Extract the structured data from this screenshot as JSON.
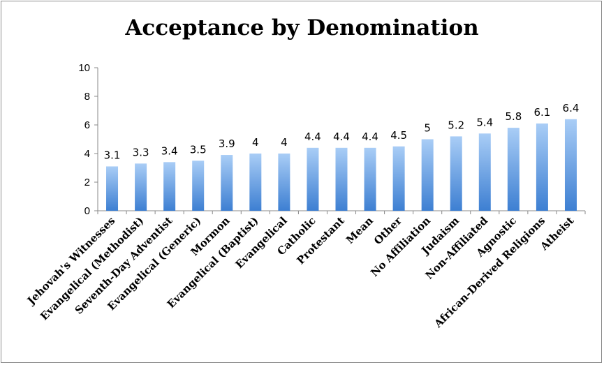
{
  "chart_data": {
    "type": "bar",
    "title": "Acceptance by Denomination",
    "xlabel": "",
    "ylabel": "",
    "ylim": [
      0,
      10
    ],
    "yticks": [
      0,
      2,
      4,
      6,
      8,
      10
    ],
    "grid": false,
    "legend": "none",
    "categories": [
      "Jehovah's Witnesses",
      "Evangelical (Methodist)",
      "Seventh-Day Adventist",
      "Evangelical (Generic)",
      "Mormon",
      "Evangelical (Baptist)",
      "Evangelical",
      "Catholic",
      "Protestant",
      "Mean",
      "Other",
      "No Affiliation",
      "Judaism",
      "Non-Affiliated",
      "Agnostic",
      "African-Derived Religions",
      "Atheist"
    ],
    "values": [
      3.1,
      3.3,
      3.4,
      3.5,
      3.9,
      4,
      4,
      4.4,
      4.4,
      4.4,
      4.5,
      5,
      5.2,
      5.4,
      5.8,
      6.1,
      6.4
    ],
    "colors": {
      "bar_top": "#a9cdf6",
      "bar_bottom": "#3d7fd2",
      "axis": "#888888"
    }
  }
}
